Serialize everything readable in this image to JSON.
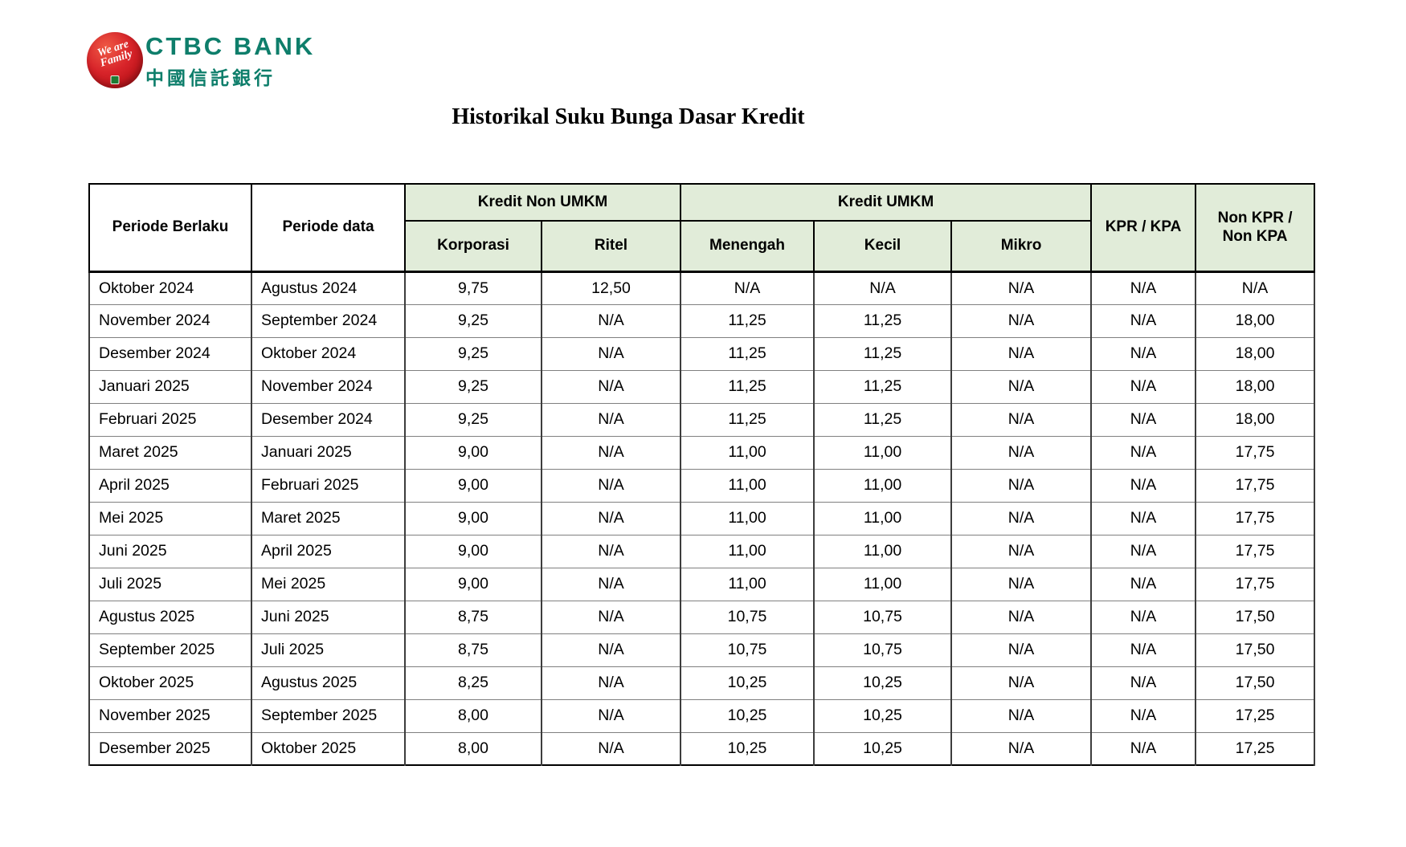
{
  "logo": {
    "name_en": "CTBC BANK",
    "name_cn": "中國信託銀行",
    "tagline_line1": "We are",
    "tagline_line2": "Family"
  },
  "colors": {
    "brand_teal": "#0e7e6b",
    "logo_red": "#c6191f",
    "header_green": "#e1ecd9"
  },
  "title": "Historikal Suku Bunga Dasar Kredit",
  "table": {
    "header": {
      "periode_berlaku": "Periode Berlaku",
      "periode_data": "Periode data",
      "kredit_non_umkm": "Kredit Non UMKM",
      "kredit_umkm": "Kredit UMKM",
      "kpr_kpa": "KPR / KPA",
      "non_kpr_kpa_line1": "Non KPR /",
      "non_kpr_kpa_line2": "Non KPA",
      "sub_columns": [
        "Korporasi",
        "Ritel",
        "Menengah",
        "Kecil",
        "Mikro"
      ]
    },
    "rows": [
      [
        "Oktober 2024",
        "Agustus 2024",
        "9,75",
        "12,50",
        "N/A",
        "N/A",
        "N/A",
        "N/A",
        "N/A"
      ],
      [
        "November 2024",
        "September 2024",
        "9,25",
        "N/A",
        "11,25",
        "11,25",
        "N/A",
        "N/A",
        "18,00"
      ],
      [
        "Desember 2024",
        "Oktober 2024",
        "9,25",
        "N/A",
        "11,25",
        "11,25",
        "N/A",
        "N/A",
        "18,00"
      ],
      [
        "Januari 2025",
        "November 2024",
        "9,25",
        "N/A",
        "11,25",
        "11,25",
        "N/A",
        "N/A",
        "18,00"
      ],
      [
        "Februari 2025",
        "Desember 2024",
        "9,25",
        "N/A",
        "11,25",
        "11,25",
        "N/A",
        "N/A",
        "18,00"
      ],
      [
        "Maret 2025",
        "Januari 2025",
        "9,00",
        "N/A",
        "11,00",
        "11,00",
        "N/A",
        "N/A",
        "17,75"
      ],
      [
        "April 2025",
        "Februari 2025",
        "9,00",
        "N/A",
        "11,00",
        "11,00",
        "N/A",
        "N/A",
        "17,75"
      ],
      [
        "Mei 2025",
        "Maret 2025",
        "9,00",
        "N/A",
        "11,00",
        "11,00",
        "N/A",
        "N/A",
        "17,75"
      ],
      [
        "Juni 2025",
        "April 2025",
        "9,00",
        "N/A",
        "11,00",
        "11,00",
        "N/A",
        "N/A",
        "17,75"
      ],
      [
        "Juli 2025",
        "Mei 2025",
        "9,00",
        "N/A",
        "11,00",
        "11,00",
        "N/A",
        "N/A",
        "17,75"
      ],
      [
        "Agustus 2025",
        "Juni 2025",
        "8,75",
        "N/A",
        "10,75",
        "10,75",
        "N/A",
        "N/A",
        "17,50"
      ],
      [
        "September 2025",
        "Juli 2025",
        "8,75",
        "N/A",
        "10,75",
        "10,75",
        "N/A",
        "N/A",
        "17,50"
      ],
      [
        "Oktober 2025",
        "Agustus 2025",
        "8,25",
        "N/A",
        "10,25",
        "10,25",
        "N/A",
        "N/A",
        "17,50"
      ],
      [
        "November 2025",
        "September 2025",
        "8,00",
        "N/A",
        "10,25",
        "10,25",
        "N/A",
        "N/A",
        "17,25"
      ],
      [
        "Desember 2025",
        "Oktober 2025",
        "8,00",
        "N/A",
        "10,25",
        "10,25",
        "N/A",
        "N/A",
        "17,25"
      ]
    ]
  }
}
